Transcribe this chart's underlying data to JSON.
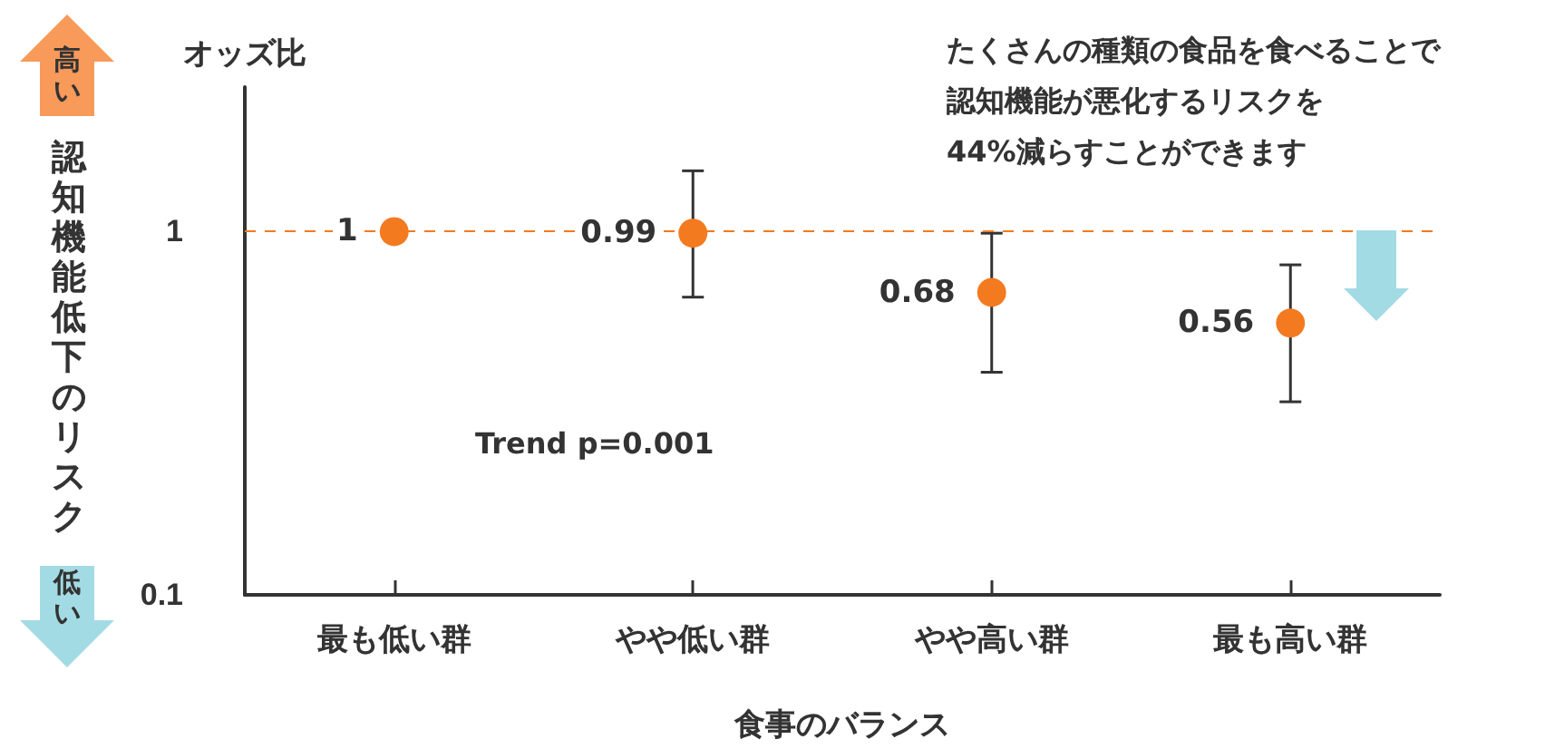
{
  "chart_data": {
    "type": "scatter",
    "ylabel": "オッズ比",
    "xlabel": "食事のバランス",
    "categories": [
      "最も低い群",
      "やや低い群",
      "やや高い群",
      "最も高い群"
    ],
    "values": [
      1,
      0.99,
      0.68,
      0.56
    ],
    "color": "#f47a20",
    "errors": [
      null,
      [
        0.66,
        1.47
      ],
      [
        0.41,
        0.99
      ],
      [
        0.34,
        0.81
      ]
    ],
    "log": true,
    "ylim": [
      0.1,
      2.5
    ],
    "yticks": [
      0.1,
      1
    ],
    "grid": false,
    "marker": "circle",
    "data_labels": true,
    "ref_lines": [
      {
        "axis": "y",
        "value": 1,
        "color": "#f47a20",
        "line_style": "dashed"
      }
    ],
    "annotations": [
      "たくさんの種類の食品を食べることで",
      "認知機能が悪化するリスクを",
      "44%減らすことができます",
      "Trend p=0.001",
      "認知機能低下のリスク",
      "高い",
      "低い"
    ]
  }
}
